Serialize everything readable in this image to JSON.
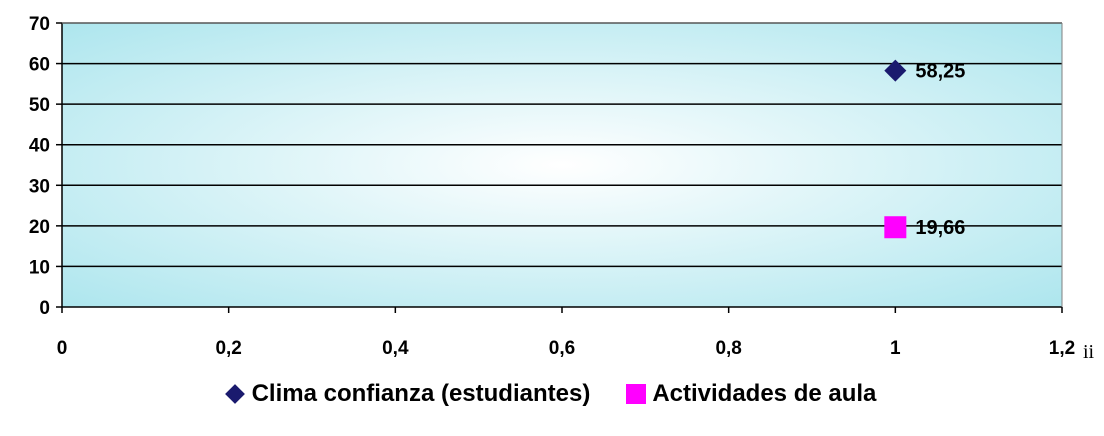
{
  "chart_data": {
    "type": "scatter",
    "title": "",
    "xlabel": "",
    "ylabel": "",
    "xlim": [
      0,
      1.2
    ],
    "ylim": [
      0,
      70
    ],
    "xticks": [
      "0",
      "0,2",
      "0,4",
      "0,6",
      "0,8",
      "1",
      "1,2"
    ],
    "yticks": [
      "0",
      "10",
      "20",
      "30",
      "40",
      "50",
      "60",
      "70"
    ],
    "grid": "horizontal",
    "legend_position": "bottom",
    "background": "gradient light cyan",
    "series": [
      {
        "name": "Clima confianza (estudiantes)",
        "marker": "diamond",
        "color": "#1a1a6e",
        "points": [
          {
            "x": 1,
            "y": 58.25,
            "label": "58,25"
          }
        ]
      },
      {
        "name": "Actividades de aula",
        "marker": "square",
        "color": "#ff00ff",
        "points": [
          {
            "x": 1,
            "y": 19.66,
            "label": "19,66"
          }
        ]
      }
    ]
  },
  "footnote": "ii"
}
